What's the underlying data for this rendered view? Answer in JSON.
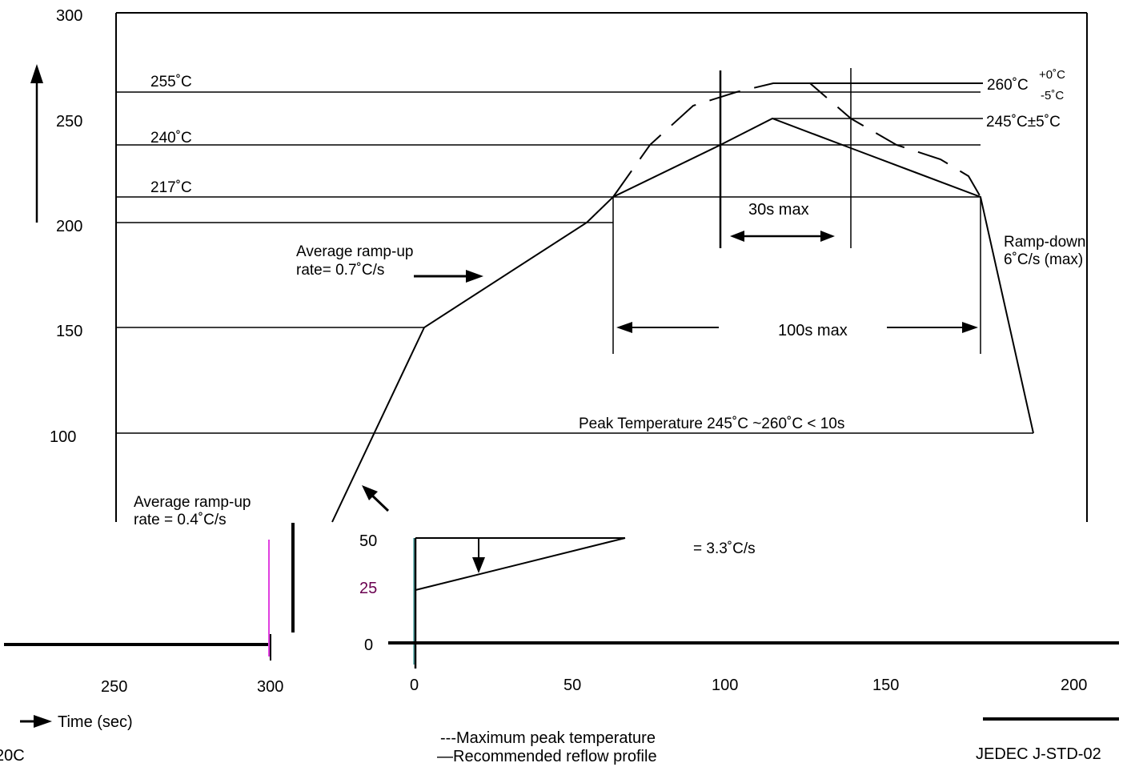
{
  "chart_data": [
    {
      "type": "line",
      "title": "",
      "xlabel": "",
      "ylabel": "",
      "ylim": [
        100,
        300
      ],
      "y_ticks": [
        "300",
        "250",
        "200",
        "150",
        "100"
      ],
      "series": [
        {
          "x": [
            0,
            88,
            140,
            150,
            190,
            209,
            232,
            254,
            273
          ],
          "y": [
            90,
            150,
            200,
            213,
            237,
            250,
            236,
            213,
            100
          ]
        },
        {
          "x": [
            155,
            168,
            184,
            200,
            213,
            226,
            244,
            260,
            270
          ],
          "y": [
            220,
            245,
            260,
            265,
            265,
            258,
            245,
            228,
            213
          ]
        }
      ],
      "reference_lines": [
        {
          "value": 255,
          "label": "255˚C"
        },
        {
          "value": 240,
          "label": "240˚C"
        },
        {
          "value": 217,
          "label": "217˚C"
        },
        {
          "value": 200,
          "label": ""
        },
        {
          "value": 150,
          "label": ""
        },
        {
          "value": 100,
          "label": ""
        }
      ],
      "annotations": {
        "peak_max_main": "260˚C",
        "peak_max_sup": "+0˚C",
        "peak_max_sub": "-5˚C",
        "peak_rec": "245˚C±5˚C",
        "time_30": "30s max",
        "time_100": "100s max",
        "ramp_down_1": "Ramp-down",
        "ramp_down_2": "6˚C/s (max)",
        "ramp_up_07_1": "Average ramp-up",
        "ramp_up_07_2": "rate= 0.7˚C/s",
        "peak_temp": "Peak Temperature 245˚C ~260˚C < 10s",
        "ramp_up_04_1": "Average ramp-up",
        "ramp_up_04_2": "rate = 0.4˚C/s"
      }
    },
    {
      "type": "line",
      "title": "",
      "xlabel": "Time (sec)",
      "ylabel": "",
      "xlim": [
        0,
        200
      ],
      "ylim": [
        0,
        50
      ],
      "y_ticks": [
        "50",
        "25",
        "0"
      ],
      "x_ticks_left": [
        "250",
        "300"
      ],
      "x_ticks_right": [
        "0",
        "50",
        "100",
        "150",
        "200"
      ],
      "series": [
        {
          "x": [
            0,
            67
          ],
          "y": [
            25,
            50
          ]
        },
        {
          "x": [
            0,
            67
          ],
          "y": [
            50,
            50
          ]
        }
      ],
      "annotations": {
        "ramp_rate": "= 3.3˚C/s"
      }
    }
  ],
  "legend": {
    "dashed": "---Maximum peak temperature",
    "solid": "—Recommended reflow profile"
  },
  "footer": {
    "left_code": "20C",
    "standard": "JEDEC J-STD-02"
  }
}
